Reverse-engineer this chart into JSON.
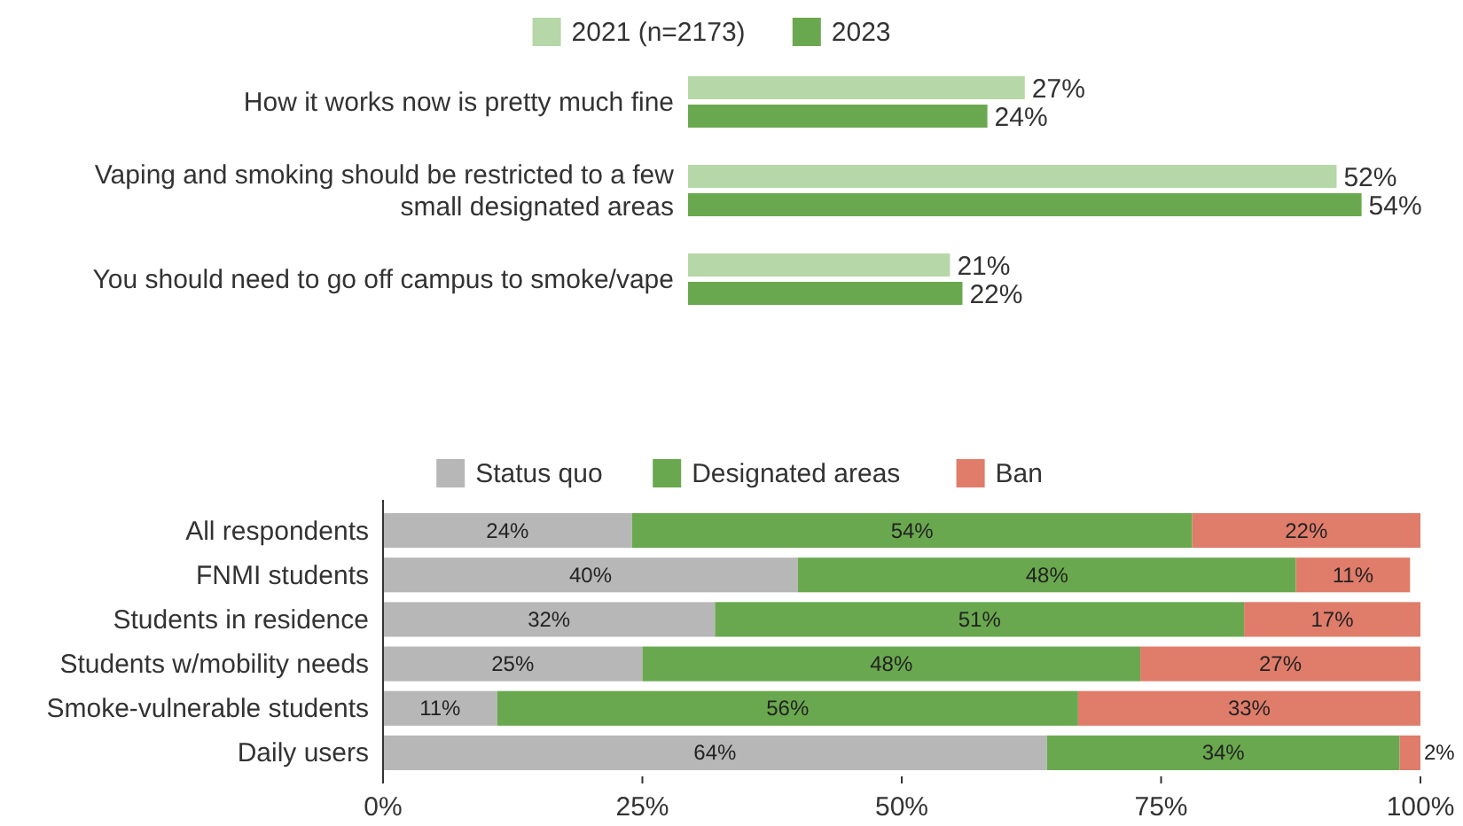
{
  "chart_data": [
    {
      "type": "bar",
      "orientation": "horizontal",
      "legend": "top",
      "categories": [
        "How it works now is pretty much fine",
        "Vaping and smoking should be restricted to a few small designated areas",
        "You should need to go off campus to smoke/vape"
      ],
      "series": [
        {
          "name": "2021 (n=2173)",
          "color": "#b6d7a8",
          "values": [
            27,
            52,
            21
          ],
          "value_labels": [
            "27%",
            "52%",
            "21%"
          ]
        },
        {
          "name": "2023",
          "color": "#6aa84f",
          "values": [
            24,
            54,
            22
          ],
          "value_labels": [
            "24%",
            "54%",
            "22%"
          ]
        }
      ]
    },
    {
      "type": "bar",
      "orientation": "horizontal",
      "stacked": true,
      "legend": "top",
      "xlim": [
        0,
        100
      ],
      "xticks": [
        {
          "value": 0,
          "label": "0%"
        },
        {
          "value": 25,
          "label": "25%"
        },
        {
          "value": 50,
          "label": "50%"
        },
        {
          "value": 75,
          "label": "75%"
        },
        {
          "value": 100,
          "label": "100%"
        }
      ],
      "categories": [
        "All respondents",
        "FNMI students",
        "Students in residence",
        "Students w/mobility needs",
        "Smoke-vulnerable students",
        "Daily users"
      ],
      "series": [
        {
          "name": "Status quo",
          "color": "#b7b7b7",
          "values": [
            24,
            40,
            32,
            25,
            11,
            64
          ],
          "value_labels": [
            "24%",
            "40%",
            "32%",
            "25%",
            "11%",
            "64%"
          ]
        },
        {
          "name": "Designated areas",
          "color": "#6aa84f",
          "values": [
            54,
            48,
            51,
            48,
            56,
            34
          ],
          "value_labels": [
            "54%",
            "48%",
            "51%",
            "48%",
            "56%",
            "34%"
          ]
        },
        {
          "name": "Ban",
          "color": "#e07c6a",
          "values": [
            22,
            11,
            17,
            27,
            33,
            2
          ],
          "value_labels": [
            "22%",
            "11%",
            "17%",
            "27%",
            "33%",
            "2%"
          ]
        }
      ]
    }
  ]
}
